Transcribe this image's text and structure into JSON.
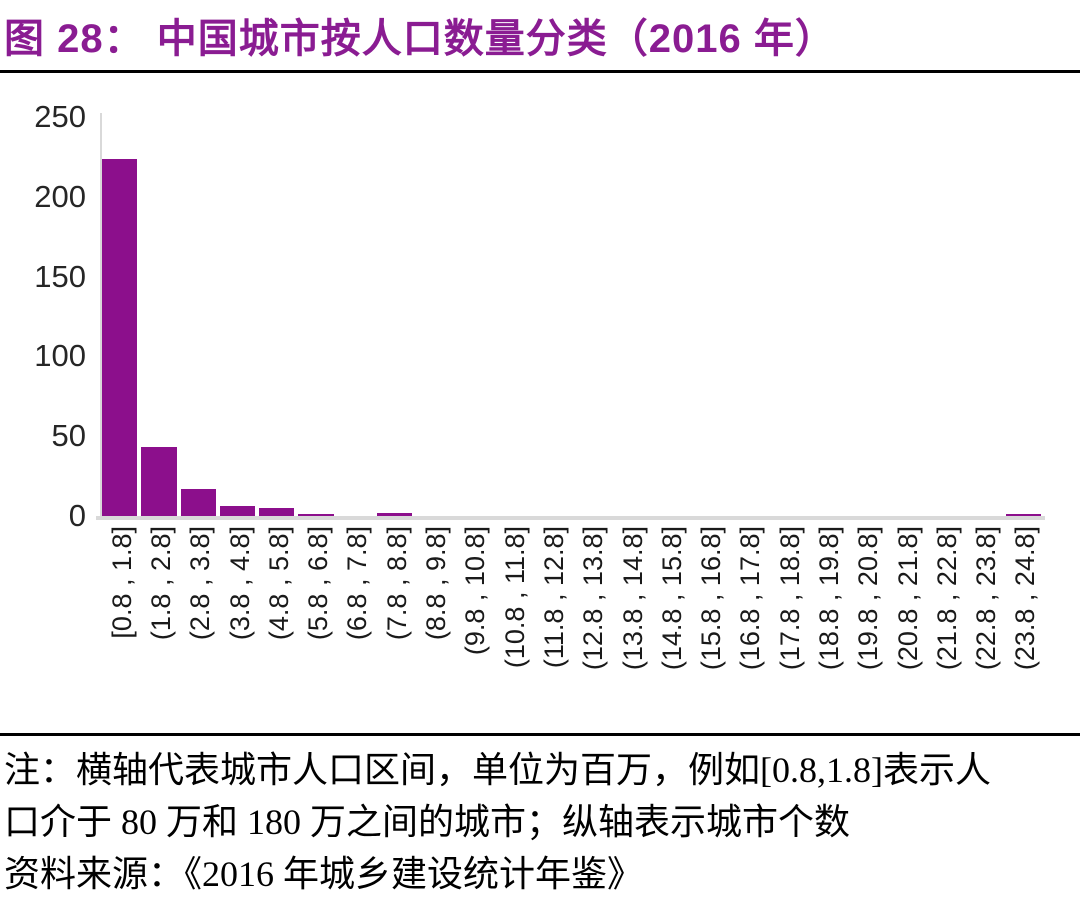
{
  "figure": {
    "title": "图 28：  中国城市按人口数量分类（2016 年）"
  },
  "colors": {
    "title": "#8A1C92",
    "bar": "#8C0F8C",
    "axis_line": "#D9D9D9",
    "divider": "#000000",
    "tick_text": "#262626"
  },
  "chart_data": {
    "type": "bar",
    "title": "图 28：中国城市按人口数量分类（2016 年）",
    "categories": [
      "[0.8 , 1.8]",
      "(1.8 , 2.8]",
      "(2.8 , 3.8]",
      "(3.8 , 4.8]",
      "(4.8 , 5.8]",
      "(5.8 , 6.8]",
      "(6.8 , 7.8]",
      "(7.8 , 8.8]",
      "(8.8 , 9.8]",
      "(9.8 , 10.8]",
      "(10.8 , 11.8]",
      "(11.8 , 12.8]",
      "(12.8 , 13.8]",
      "(13.8 , 14.8]",
      "(14.8 , 15.8]",
      "(15.8 , 16.8]",
      "(16.8 , 17.8]",
      "(17.8 , 18.8]",
      "(18.8 , 19.8]",
      "(19.8 , 20.8]",
      "(20.8 , 21.8]",
      "(21.8 , 22.8]",
      "(22.8 , 23.8]",
      "(23.8 , 24.8]"
    ],
    "values": [
      224,
      43,
      17,
      6,
      5,
      1,
      0,
      2,
      0,
      0,
      0,
      0,
      0,
      0,
      0,
      0,
      0,
      0,
      0,
      0,
      0,
      0,
      0,
      1
    ],
    "xlabel": "",
    "ylabel": "",
    "ylim": [
      0,
      250
    ],
    "yticks": [
      0,
      50,
      100,
      150,
      200,
      250
    ],
    "grid": false,
    "legend": false,
    "bar_color": "#8C0F8C"
  },
  "notes": {
    "line1": "注：横轴代表城市人口区间，单位为百万，例如[0.8,1.8]表示人",
    "line2": "口介于 80 万和 180 万之间的城市；纵轴表示城市个数",
    "line3": "资料来源：《2016 年城乡建设统计年鉴》"
  }
}
